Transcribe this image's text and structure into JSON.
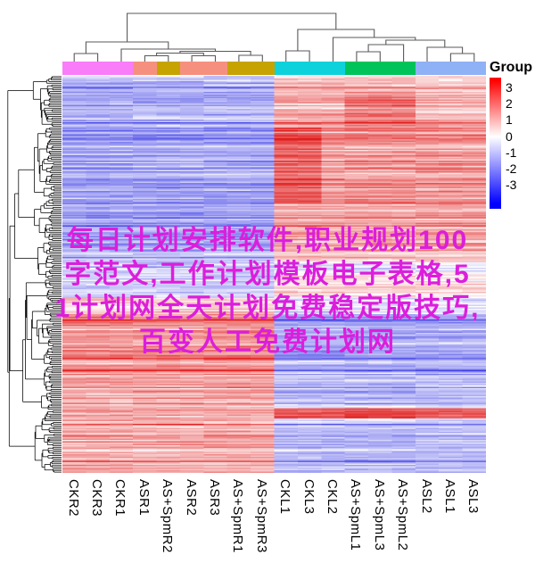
{
  "overlay": {
    "lines": [
      "每日计划安排软件,职业规划100",
      "字范文,工作计划模板电子表格,5",
      "1计划网全天计划免费稳定版技巧,",
      "百变人工免费计划网"
    ],
    "color": "#DC1EDC"
  },
  "chart_data": {
    "type": "heatmap",
    "title": "",
    "annotation_title": "Group",
    "columns": [
      "CKR2",
      "CKR3",
      "CKR1",
      "ASR1",
      "AS+SpmR2",
      "ASR2",
      "ASR3",
      "AS+SpmR1",
      "AS+SpmR3",
      "CKL1",
      "CKL3",
      "CKL2",
      "AS+SpmL1",
      "AS+SpmL3",
      "AS+SpmL2",
      "ASL2",
      "ASL1",
      "ASL3"
    ],
    "column_groups": [
      "CKR",
      "CKR",
      "CKR",
      "ASR",
      "AS+SpmR",
      "ASR",
      "ASR",
      "AS+SpmR",
      "AS+SpmR",
      "CKL",
      "CKL",
      "CKL",
      "AS+SpmL",
      "AS+SpmL",
      "AS+SpmL",
      "ASL",
      "ASL",
      "ASL"
    ],
    "group_colors": {
      "CKR": "#F97CF9",
      "ASR": "#F6907E",
      "AS+SpmR": "#C6A300",
      "CKL": "#0ED2DB",
      "AS+SpmL": "#00C45A",
      "ASL": "#8FB1F5"
    },
    "legend": {
      "ticks": [
        "3",
        "2",
        "1",
        "0",
        "-1",
        "-2",
        "-3"
      ],
      "value_range": [
        -3,
        3
      ],
      "top_color": "#FF0000",
      "mid_color": "#FFFFFF",
      "bottom_color": "#0000FF"
    },
    "row_labels_shown": false,
    "row_count_estimate": 600,
    "top_dendrogram": {
      "stroke": "#595959",
      "merges": [
        [
          0,
          1,
          50
        ],
        [
          3,
          4,
          52.5
        ],
        [
          5,
          6,
          52.5
        ],
        [
          101,
          102,
          49.5
        ],
        [
          7,
          8,
          52
        ],
        [
          103,
          104,
          47.5
        ],
        [
          2,
          105,
          45
        ],
        [
          100,
          106,
          37
        ],
        [
          9,
          10,
          47
        ],
        [
          12,
          13,
          48
        ],
        [
          109,
          14,
          40
        ],
        [
          16,
          17,
          50
        ],
        [
          15,
          111,
          43
        ],
        [
          110,
          112,
          35
        ],
        [
          11,
          113,
          32
        ],
        [
          108,
          114,
          23
        ],
        [
          107,
          115,
          5
        ]
      ]
    },
    "row_dendrogram": {
      "leaves": 240,
      "seed": 7,
      "stroke": "#000000"
    },
    "heatmap_pattern": {
      "rows": 300,
      "cols": 18,
      "seed": 1234,
      "left_col_range": [
        0,
        8
      ],
      "right_col_range": [
        9,
        17
      ],
      "sections": [
        {
          "until": 0.055,
          "left": -0.75,
          "right": 0.55
        },
        {
          "until": 0.13,
          "left": -0.9,
          "right": 0.85
        },
        {
          "until": 0.32,
          "left": -1.05,
          "right": 1.0
        },
        {
          "until": 0.46,
          "left": -0.95,
          "right": 0.8
        },
        {
          "until": 0.56,
          "left": -0.45,
          "right": 0.3
        },
        {
          "until": 0.6,
          "left": 0.35,
          "right": -0.3
        },
        {
          "until": 0.83,
          "left": 0.95,
          "right": -0.85
        },
        {
          "until": 0.87,
          "left": 0.8,
          "right": -0.4
        },
        {
          "until": 1.0,
          "left": 0.8,
          "right": -0.7
        }
      ],
      "boosts": [
        {
          "r0": 0.13,
          "r1": 0.32,
          "c0": 9,
          "c1": 10,
          "d": 0.55
        },
        {
          "r0": 0.04,
          "r1": 0.13,
          "c0": 12,
          "c1": 14,
          "d": 0.45
        },
        {
          "r0": 0.835,
          "r1": 0.862,
          "c0": 9,
          "c1": 17,
          "d": 1.9
        },
        {
          "r0": 0.47,
          "r1": 0.5,
          "c0": 9,
          "c1": 17,
          "d": -0.5
        }
      ],
      "colors": {
        "positive": "#E11E1E",
        "negative": "#3C3CE6",
        "zero": "#FFFFFF"
      }
    }
  }
}
